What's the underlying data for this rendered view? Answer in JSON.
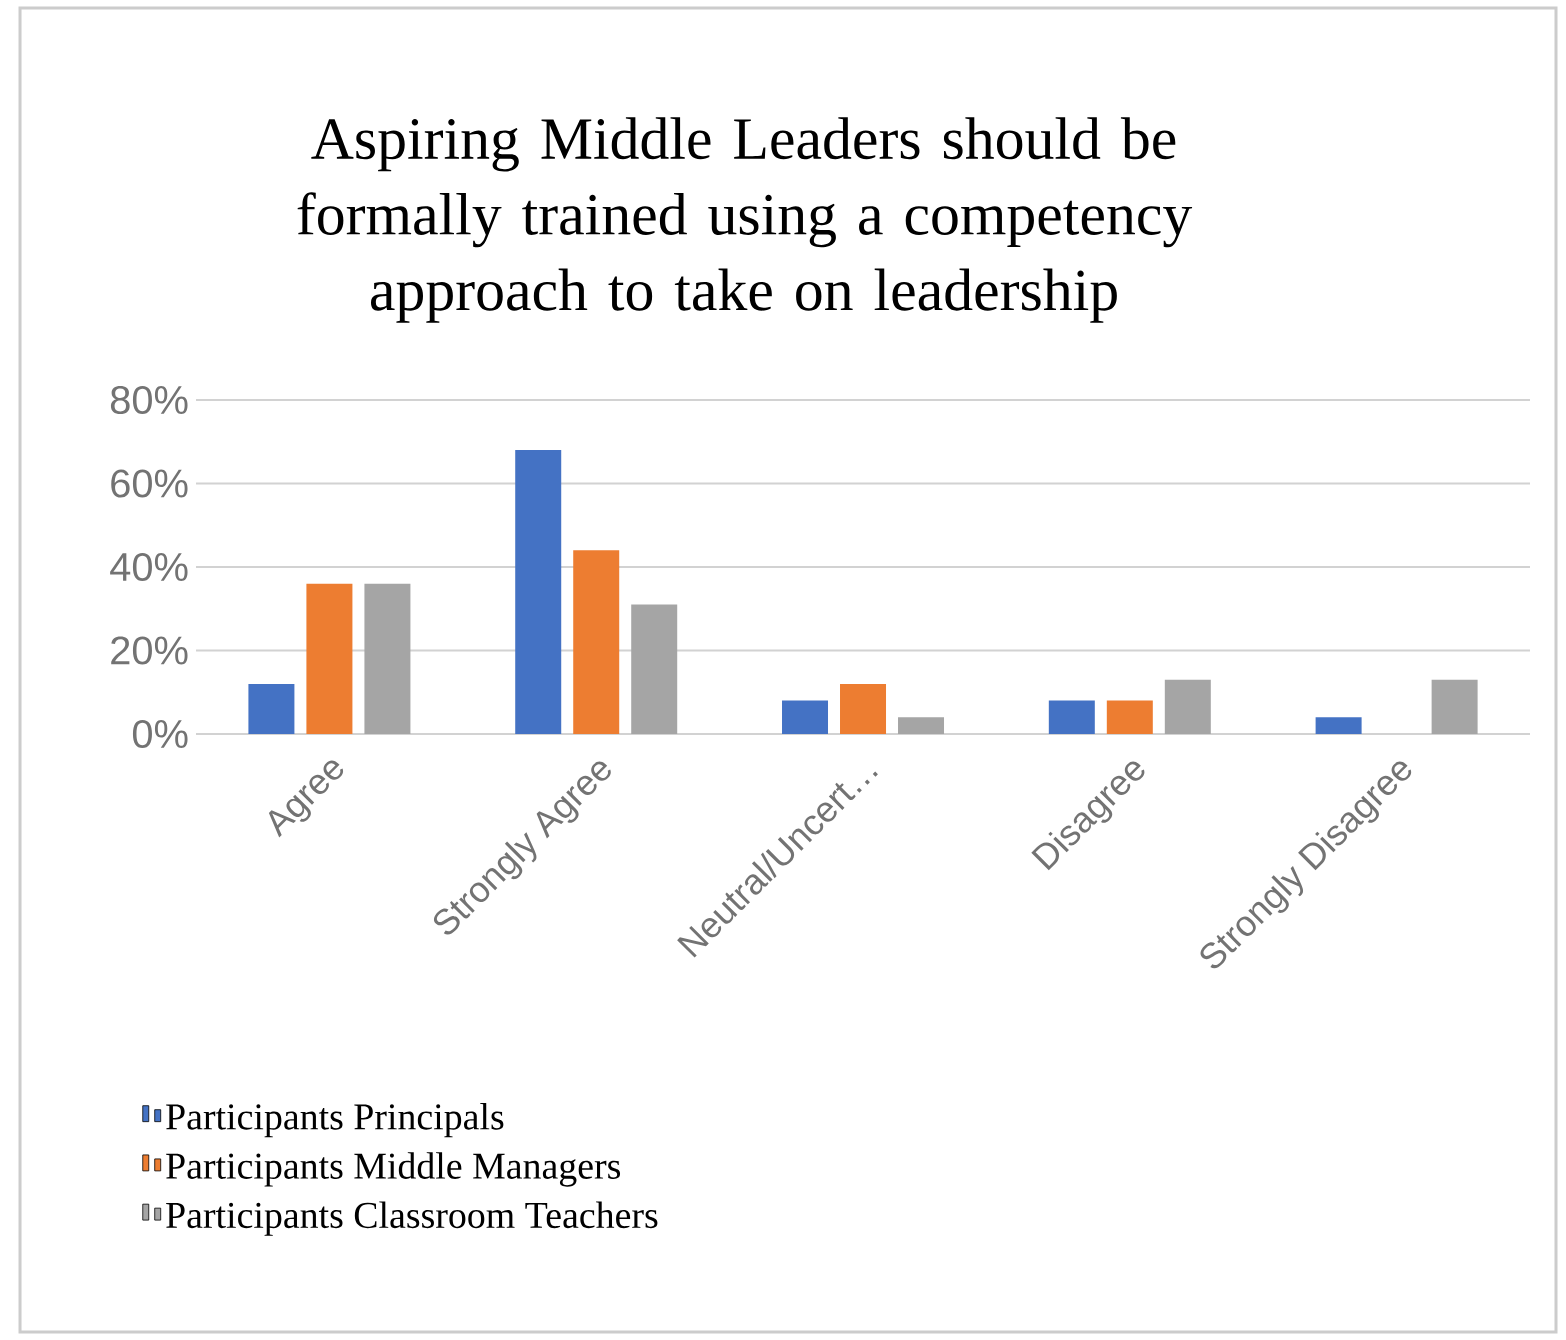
{
  "chart_data": {
    "type": "bar",
    "title": "Aspiring Middle Leaders should be formally trained using a competency approach to take on leadership",
    "categories": [
      "Agree",
      "Strongly Agree",
      "Neutral/Uncert…",
      "Disagree",
      "Strongly Disagree"
    ],
    "series": [
      {
        "name": "Participants Principals",
        "color": "#4472c4",
        "values": [
          12,
          68,
          8,
          8,
          4
        ]
      },
      {
        "name": "Participants Middle Managers",
        "color": "#ed7d31",
        "values": [
          36,
          44,
          12,
          8,
          0
        ]
      },
      {
        "name": "Participants Classroom Teachers",
        "color": "#a5a5a5",
        "values": [
          36,
          31,
          4,
          13,
          13
        ]
      }
    ],
    "ylim": [
      0,
      80
    ],
    "yticks": [
      {
        "value": 0,
        "label": "0%"
      },
      {
        "value": 20,
        "label": "20%"
      },
      {
        "value": 40,
        "label": "40%"
      },
      {
        "value": 60,
        "label": "60%"
      },
      {
        "value": 80,
        "label": "80%"
      }
    ],
    "grid": "y",
    "legend": "bottom"
  }
}
